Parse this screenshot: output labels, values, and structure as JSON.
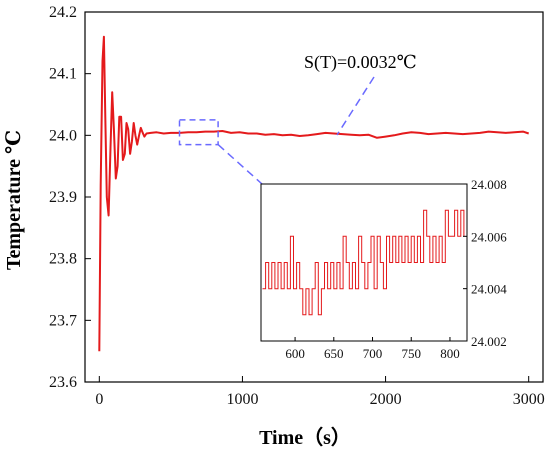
{
  "chart_data": [
    {
      "type": "line",
      "title": "",
      "xlabel": "Time（s）",
      "ylabel": "Temperature ℃",
      "xlim": [
        -100,
        3100
      ],
      "ylim": [
        23.6,
        24.2
      ],
      "xticks": [
        0,
        1000,
        2000,
        3000
      ],
      "yticks": [
        23.6,
        23.7,
        23.8,
        23.9,
        24.0,
        24.1,
        24.2
      ],
      "xtick_labels": [
        "0",
        "1000",
        "2000",
        "3000"
      ],
      "ytick_labels": [
        "23.6",
        "23.7",
        "23.8",
        "23.9",
        "24.0",
        "24.1",
        "24.2"
      ],
      "grid": false,
      "line_color": "#e41a1c",
      "annotation": "S(T)=0.0032℃",
      "zoom_box": {
        "x": [
          560,
          830
        ],
        "y": [
          23.985,
          24.025
        ],
        "color": "#6a6aff"
      },
      "series": [
        {
          "x": [
            0,
            10,
            22,
            32,
            42,
            52,
            65,
            78,
            90,
            102,
            115,
            128,
            140,
            152,
            165,
            178,
            190,
            202,
            215,
            228,
            240,
            252,
            265,
            278,
            290,
            302,
            315,
            330,
            360,
            400,
            450,
            500,
            560,
            620,
            680,
            740,
            800,
            860,
            920,
            980,
            1040,
            1100,
            1160,
            1220,
            1280,
            1340,
            1400,
            1460,
            1520,
            1580,
            1640,
            1700,
            1760,
            1820,
            1880,
            1940,
            2000,
            2060,
            2120,
            2180,
            2240,
            2300,
            2360,
            2420,
            2480,
            2540,
            2600,
            2660,
            2720,
            2780,
            2840,
            2900,
            2960,
            3000
          ],
          "y": [
            23.65,
            23.92,
            24.12,
            24.16,
            24.03,
            23.9,
            23.87,
            23.98,
            24.07,
            24.01,
            23.93,
            23.95,
            24.03,
            24.03,
            23.96,
            23.97,
            24.02,
            24.01,
            23.97,
            23.99,
            24.02,
            24.0,
            23.985,
            24.0,
            24.012,
            24.005,
            23.998,
            24.003,
            24.004,
            24.005,
            24.003,
            24.004,
            24.004,
            24.005,
            24.005,
            24.006,
            24.006,
            24.007,
            24.004,
            24.005,
            24.003,
            24.003,
            24.001,
            24.002,
            24.0,
            24.001,
            23.999,
            24.0,
            24.002,
            24.004,
            24.003,
            24.002,
            24.001,
            24.0,
            24.001,
            23.996,
            23.998,
            24.0,
            24.003,
            24.005,
            24.004,
            24.002,
            24.003,
            24.004,
            24.003,
            24.002,
            24.003,
            24.004,
            24.006,
            24.005,
            24.004,
            24.005,
            24.006,
            24.003
          ]
        }
      ]
    },
    {
      "type": "line",
      "title": "",
      "xlabel": "",
      "ylabel": "",
      "xlim": [
        556,
        822
      ],
      "ylim": [
        24.002,
        24.008
      ],
      "xticks": [
        600,
        650,
        700,
        750,
        800
      ],
      "yticks": [
        24.002,
        24.004,
        24.006,
        24.008
      ],
      "xtick_labels": [
        "600",
        "650",
        "700",
        "750",
        "800"
      ],
      "ytick_labels": [
        "24.002",
        "24.004",
        "24.006",
        "24.008"
      ],
      "y_axis_side": "right",
      "grid": false,
      "line_color": "#e41a1c",
      "series": [
        {
          "x": [
            558,
            562,
            566,
            570,
            574,
            578,
            582,
            586,
            590,
            594,
            598,
            602,
            606,
            610,
            614,
            618,
            622,
            626,
            630,
            634,
            638,
            642,
            646,
            650,
            654,
            658,
            662,
            666,
            670,
            674,
            678,
            682,
            686,
            690,
            694,
            698,
            702,
            706,
            710,
            714,
            718,
            722,
            726,
            730,
            734,
            738,
            742,
            746,
            750,
            754,
            758,
            762,
            766,
            770,
            774,
            778,
            782,
            786,
            790,
            794,
            798,
            802,
            806,
            810,
            814,
            818
          ],
          "y": [
            24.004,
            24.005,
            24.004,
            24.005,
            24.004,
            24.005,
            24.004,
            24.005,
            24.004,
            24.006,
            24.004,
            24.005,
            24.004,
            24.003,
            24.004,
            24.003,
            24.004,
            24.005,
            24.003,
            24.004,
            24.005,
            24.004,
            24.005,
            24.004,
            24.005,
            24.004,
            24.006,
            24.005,
            24.004,
            24.005,
            24.004,
            24.006,
            24.005,
            24.004,
            24.005,
            24.006,
            24.004,
            24.006,
            24.005,
            24.004,
            24.006,
            24.005,
            24.006,
            24.005,
            24.006,
            24.005,
            24.006,
            24.005,
            24.006,
            24.005,
            24.006,
            24.005,
            24.007,
            24.006,
            24.005,
            24.006,
            24.005,
            24.006,
            24.005,
            24.007,
            24.006,
            24.006,
            24.007,
            24.006,
            24.007,
            24.006
          ]
        }
      ]
    }
  ]
}
